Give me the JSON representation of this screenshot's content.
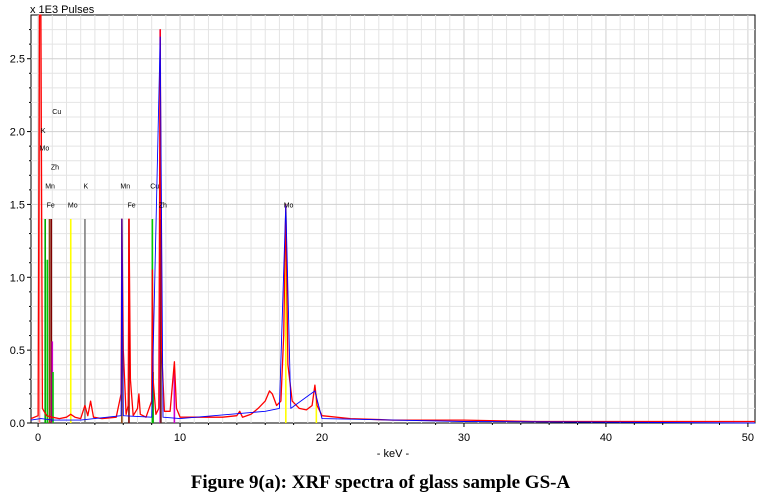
{
  "caption": "Figure 9(a): XRF spectra of glass sample GS-A",
  "chart_data": {
    "type": "line",
    "title": "",
    "ylabel": "x 1E3 Pulses",
    "xlabel": "- keV -",
    "xlim": [
      -0.5,
      50.5
    ],
    "ylim": [
      0,
      2.8
    ],
    "xticks": [
      0,
      10,
      20,
      30,
      40,
      50
    ],
    "xtick_labels": [
      "0",
      "10",
      "20",
      "30",
      "40",
      "50"
    ],
    "yticks": [
      0.0,
      0.5,
      1.0,
      1.5,
      2.0,
      2.5
    ],
    "ytick_labels": [
      "0.0",
      "0.5",
      "1.0",
      "1.5",
      "2.0",
      "2.5"
    ],
    "grid": true,
    "series": [
      {
        "color": "#ff0000",
        "points": [
          [
            -0.5,
            0.03
          ],
          [
            0.0,
            0.05
          ],
          [
            0.1,
            2.8
          ],
          [
            0.2,
            2.8
          ],
          [
            0.3,
            0.1
          ],
          [
            0.6,
            0.05
          ],
          [
            1.0,
            0.04
          ],
          [
            1.5,
            0.03
          ],
          [
            2.0,
            0.04
          ],
          [
            2.3,
            0.06
          ],
          [
            2.6,
            0.04
          ],
          [
            3.0,
            0.03
          ],
          [
            3.3,
            0.12
          ],
          [
            3.5,
            0.05
          ],
          [
            3.7,
            0.15
          ],
          [
            3.9,
            0.04
          ],
          [
            4.5,
            0.03
          ],
          [
            5.5,
            0.04
          ],
          [
            5.85,
            0.2
          ],
          [
            5.9,
            1.4
          ],
          [
            6.0,
            0.5
          ],
          [
            6.2,
            0.06
          ],
          [
            6.35,
            0.12
          ],
          [
            6.4,
            1.4
          ],
          [
            6.5,
            0.3
          ],
          [
            6.7,
            0.05
          ],
          [
            7.0,
            0.1
          ],
          [
            7.1,
            0.2
          ],
          [
            7.2,
            0.06
          ],
          [
            7.6,
            0.04
          ],
          [
            8.0,
            0.15
          ],
          [
            8.05,
            1.05
          ],
          [
            8.1,
            0.3
          ],
          [
            8.3,
            0.06
          ],
          [
            8.5,
            0.1
          ],
          [
            8.6,
            2.7
          ],
          [
            8.7,
            0.5
          ],
          [
            8.9,
            0.08
          ],
          [
            9.3,
            0.08
          ],
          [
            9.6,
            0.42
          ],
          [
            9.75,
            0.1
          ],
          [
            10.0,
            0.04
          ],
          [
            11.0,
            0.04
          ],
          [
            12.0,
            0.04
          ],
          [
            13.0,
            0.04
          ],
          [
            14.0,
            0.05
          ],
          [
            14.2,
            0.08
          ],
          [
            14.4,
            0.04
          ],
          [
            15.0,
            0.06
          ],
          [
            15.5,
            0.1
          ],
          [
            16.0,
            0.15
          ],
          [
            16.3,
            0.22
          ],
          [
            16.5,
            0.2
          ],
          [
            16.8,
            0.12
          ],
          [
            17.1,
            0.15
          ],
          [
            17.3,
            0.6
          ],
          [
            17.45,
            1.5
          ],
          [
            17.6,
            0.4
          ],
          [
            17.9,
            0.15
          ],
          [
            18.4,
            0.1
          ],
          [
            18.9,
            0.09
          ],
          [
            19.3,
            0.12
          ],
          [
            19.5,
            0.26
          ],
          [
            19.65,
            0.12
          ],
          [
            20.0,
            0.05
          ],
          [
            22.0,
            0.03
          ],
          [
            25.0,
            0.02
          ],
          [
            30.0,
            0.02
          ],
          [
            35.0,
            0.01
          ],
          [
            40.0,
            0.01
          ],
          [
            45.0,
            0.01
          ],
          [
            50.5,
            0.01
          ]
        ]
      },
      {
        "color": "#0000ff",
        "points": [
          [
            -0.5,
            0.02
          ],
          [
            0.2,
            0.03
          ],
          [
            1.0,
            0.02
          ],
          [
            3.0,
            0.02
          ],
          [
            5.85,
            0.05
          ],
          [
            5.9,
            1.4
          ],
          [
            6.0,
            0.05
          ],
          [
            8.0,
            0.04
          ],
          [
            8.6,
            2.65
          ],
          [
            8.8,
            0.04
          ],
          [
            10.0,
            0.03
          ],
          [
            16.0,
            0.08
          ],
          [
            17.0,
            0.1
          ],
          [
            17.45,
            1.5
          ],
          [
            17.8,
            0.1
          ],
          [
            19.5,
            0.22
          ],
          [
            20.0,
            0.03
          ],
          [
            30.0,
            0.01
          ],
          [
            50.5,
            0.0
          ]
        ]
      }
    ],
    "peak_lines": [
      {
        "x": 0.1,
        "y": 2.8,
        "color": "#ff8080"
      },
      {
        "x": 0.5,
        "y": 1.4,
        "color": "#00aa00"
      },
      {
        "x": 0.65,
        "y": 1.12,
        "color": "#00cc00"
      },
      {
        "x": 0.8,
        "y": 1.4,
        "color": "#8b4513"
      },
      {
        "x": 0.93,
        "y": 1.4,
        "color": "#800000"
      },
      {
        "x": 1.0,
        "y": 0.56,
        "color": "#cc00cc"
      },
      {
        "x": 1.05,
        "y": 0.35,
        "color": "#00cc00"
      },
      {
        "x": 2.3,
        "y": 1.4,
        "color": "#ffff00"
      },
      {
        "x": 3.3,
        "y": 1.4,
        "color": "#808080"
      },
      {
        "x": 5.9,
        "y": 1.4,
        "color": "#8b4513"
      },
      {
        "x": 6.4,
        "y": 1.4,
        "color": "#800000"
      },
      {
        "x": 8.05,
        "y": 1.4,
        "color": "#00cc00"
      },
      {
        "x": 8.1,
        "y": 0.35,
        "color": "#00aa00"
      },
      {
        "x": 8.6,
        "y": 2.7,
        "color": "#cc00cc"
      },
      {
        "x": 8.65,
        "y": 1.4,
        "color": "#6b1a1a"
      },
      {
        "x": 9.6,
        "y": 0.35,
        "color": "#cc00cc"
      },
      {
        "x": 17.45,
        "y": 1.45,
        "color": "#ffff00"
      },
      {
        "x": 19.6,
        "y": 0.2,
        "color": "#ffff00"
      }
    ],
    "annotations": [
      {
        "text": "Cu",
        "x": 1.0,
        "y": 2.12
      },
      {
        "text": "K",
        "x": 0.2,
        "y": 1.99
      },
      {
        "text": "Mo",
        "x": 0.1,
        "y": 1.87
      },
      {
        "text": "Zh",
        "x": 0.9,
        "y": 1.74
      },
      {
        "text": "Mn",
        "x": 0.5,
        "y": 1.61
      },
      {
        "text": "K",
        "x": 3.2,
        "y": 1.61
      },
      {
        "text": "Mn",
        "x": 5.8,
        "y": 1.61
      },
      {
        "text": "Cu",
        "x": 7.9,
        "y": 1.61
      },
      {
        "text": "Fe",
        "x": 0.6,
        "y": 1.48
      },
      {
        "text": "Mo",
        "x": 2.1,
        "y": 1.48
      },
      {
        "text": "Fe",
        "x": 6.3,
        "y": 1.48
      },
      {
        "text": "Zh",
        "x": 8.5,
        "y": 1.48
      },
      {
        "text": "Mo",
        "x": 17.3,
        "y": 1.48
      }
    ]
  }
}
